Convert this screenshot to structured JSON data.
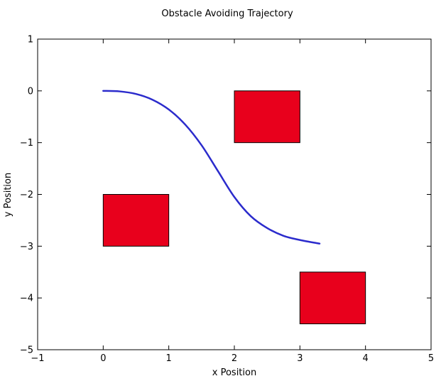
{
  "chart_data": {
    "type": "line",
    "title": "Obstacle Avoiding Trajectory",
    "xlabel": "x Position",
    "ylabel": "y Position",
    "xlim": [
      -1,
      5
    ],
    "ylim": [
      -5,
      1
    ],
    "xticks": [
      -1,
      0,
      1,
      2,
      3,
      4,
      5
    ],
    "yticks": [
      1,
      0,
      -1,
      -2,
      -3,
      -4,
      -5
    ],
    "xtick_labels": [
      "−1",
      "0",
      "1",
      "2",
      "3",
      "4",
      "5"
    ],
    "ytick_labels": [
      "1",
      "0",
      "−1",
      "−2",
      "−3",
      "−4",
      "−5"
    ],
    "grid": false,
    "series": [
      {
        "color": "#2b2bcc",
        "x": [
          0,
          0.25,
          0.5,
          0.75,
          1.0,
          1.25,
          1.5,
          1.75,
          2.0,
          2.25,
          2.5,
          2.75,
          3.0,
          3.3
        ],
        "y": [
          0,
          -0.01,
          -0.06,
          -0.17,
          -0.36,
          -0.65,
          -1.05,
          -1.55,
          -2.05,
          -2.42,
          -2.65,
          -2.8,
          -2.88,
          -2.95
        ]
      }
    ],
    "obstacles": [
      {
        "x": [
          2,
          3
        ],
        "y": [
          -1,
          0
        ],
        "color": "#e8001c"
      },
      {
        "x": [
          0,
          1
        ],
        "y": [
          -3,
          -2
        ],
        "color": "#e8001c"
      },
      {
        "x": [
          3,
          4
        ],
        "y": [
          -4.5,
          -3.5
        ],
        "color": "#e8001c"
      }
    ]
  }
}
